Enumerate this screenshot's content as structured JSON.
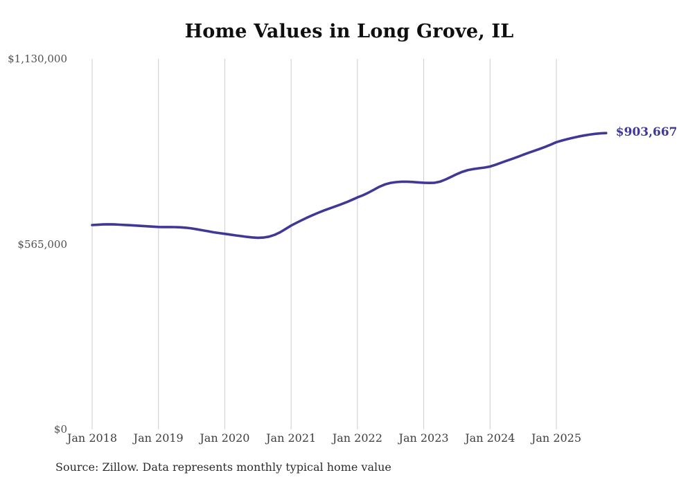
{
  "page": {
    "source_note": "Source: Zillow. Data represents monthly typical home value"
  },
  "chart_data": {
    "type": "line",
    "title": "Home Values in Long Grove, IL",
    "xlabel": "",
    "ylabel": "",
    "ylim": [
      0,
      1130000
    ],
    "grid": "vertical-only",
    "legend": "none",
    "line_color": "#3e3896",
    "grid_color": "#cccccc",
    "end_label": "$903,667",
    "end_value": 903667,
    "y_ticks": [
      {
        "value": 1130000,
        "label": "$1,130,000"
      },
      {
        "value": 565000,
        "label": "$565,000"
      },
      {
        "value": 0,
        "label": "$0"
      }
    ],
    "x_ticks": [
      {
        "month_index": 0,
        "label": "Jan 2018"
      },
      {
        "month_index": 12,
        "label": "Jan 2019"
      },
      {
        "month_index": 24,
        "label": "Jan 2020"
      },
      {
        "month_index": 36,
        "label": "Jan 2021"
      },
      {
        "month_index": 48,
        "label": "Jan 2022"
      },
      {
        "month_index": 60,
        "label": "Jan 2023"
      },
      {
        "month_index": 72,
        "label": "Jan 2024"
      },
      {
        "month_index": 84,
        "label": "Jan 2025"
      }
    ],
    "series": [
      {
        "name": "Monthly typical home value",
        "start_month": "2018-01",
        "frequency": "monthly",
        "values": [
          623000,
          624000,
          625000,
          625500,
          625000,
          624200,
          623300,
          622400,
          621400,
          620400,
          619300,
          618200,
          617200,
          617000,
          617000,
          616800,
          616200,
          614800,
          612800,
          610000,
          607000,
          604000,
          601000,
          598500,
          596300,
          594000,
          591500,
          589200,
          587000,
          585300,
          584200,
          584800,
          587500,
          593000,
          601000,
          611000,
          621500,
          630000,
          638500,
          646500,
          654000,
          661000,
          667800,
          674000,
          680000,
          686000,
          692500,
          699800,
          707300,
          714000,
          722000,
          731000,
          740000,
          747000,
          751800,
          754000,
          755200,
          755300,
          754400,
          753200,
          752200,
          751400,
          752200,
          755800,
          762500,
          770500,
          778500,
          785500,
          790800,
          794000,
          796200,
          798300,
          801500,
          807000,
          813000,
          819000,
          825000,
          831000,
          837500,
          843500,
          849500,
          855500,
          861500,
          868500,
          876000,
          880800,
          885200,
          889200,
          893000,
          896200,
          899000,
          901200,
          902700,
          903667
        ]
      }
    ]
  }
}
